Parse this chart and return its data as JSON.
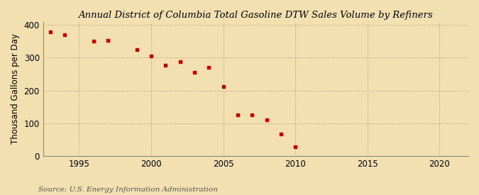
{
  "title": "Annual District of Columbia Total Gasoline DTW Sales Volume by Refiners",
  "ylabel": "Thousand Gallons per Day",
  "source": "Source: U.S. Energy Information Administration",
  "background_color": "#f2e0b0",
  "plot_bg_color": "#f2e0b0",
  "marker_color": "#cc0000",
  "years": [
    1993,
    1994,
    1996,
    1997,
    1999,
    2000,
    2001,
    2002,
    2003,
    2004,
    2005,
    2006,
    2007,
    2008,
    2009,
    2010
  ],
  "values": [
    378,
    370,
    350,
    352,
    325,
    305,
    278,
    288,
    255,
    270,
    212,
    125,
    125,
    110,
    67,
    28
  ],
  "xlim": [
    1992.5,
    2022
  ],
  "ylim": [
    0,
    410
  ],
  "xticks": [
    1995,
    2000,
    2005,
    2010,
    2015,
    2020
  ],
  "yticks": [
    0,
    100,
    200,
    300,
    400
  ],
  "grid_color": "#b0a080",
  "title_fontsize": 9.5,
  "axis_fontsize": 8.5,
  "source_fontsize": 7.5,
  "marker_size": 12
}
